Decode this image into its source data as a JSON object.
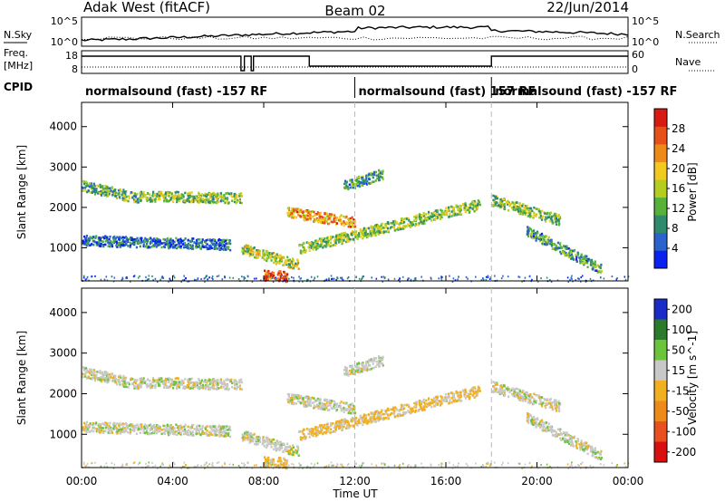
{
  "header": {
    "title": "Adak West (fitACF)",
    "beam": "Beam 02",
    "date": "22/Jun/2014"
  },
  "noise_panel": {
    "left_label": "N.Sky",
    "right_label": "N.Search",
    "left_ticks": [
      "10^5",
      "10^0"
    ],
    "right_ticks": [
      "10^5",
      "10^0"
    ]
  },
  "freq_panel": {
    "left_label_line1": "Freq.",
    "left_label_line2": "[MHz]",
    "left_ticks": [
      "18",
      "8"
    ],
    "right_label": "Nave",
    "right_ticks": [
      "60",
      "0"
    ]
  },
  "cpid": {
    "label": "CPID",
    "segments": [
      {
        "start_hour": 0,
        "end_hour": 12,
        "text": "normalsound (fast) -157 RF"
      },
      {
        "start_hour": 12,
        "end_hour": 18,
        "text": "normalsound (fast) 157 RF"
      },
      {
        "start_hour": 18,
        "end_hour": 24,
        "text": "normalsound (fast) -157 RF"
      }
    ]
  },
  "colors": {
    "power_scale": [
      "#0a22f0",
      "#2b63cc",
      "#2f8a6e",
      "#56b23a",
      "#b5cd1e",
      "#f2c91e",
      "#ee8a1a",
      "#e8501a",
      "#d81a12"
    ],
    "velocity_scale": [
      "#1a2cc8",
      "#2c7a2c",
      "#6cc43c",
      "#c8c8c8",
      "#f0b020",
      "#ee8a1a",
      "#e85020",
      "#d81010"
    ]
  },
  "chart_data": {
    "type": "heatmap",
    "x_axis": {
      "label": "Time UT",
      "ticks": [
        "00:00",
        "04:00",
        "08:00",
        "12:00",
        "16:00",
        "20:00",
        "00:00"
      ],
      "range_hours": [
        0,
        24
      ]
    },
    "panels": [
      {
        "name": "power",
        "y_axis": {
          "label": "Slant Range [km]",
          "ticks": [
            "1000",
            "2000",
            "3000",
            "4000"
          ],
          "range_km": [
            180,
            4600
          ]
        },
        "colorbar": {
          "label": "Power [dB]",
          "ticks": [
            "4",
            "8",
            "12",
            "16",
            "20",
            "24",
            "28"
          ],
          "range": [
            0,
            32
          ]
        },
        "echo_regions": [
          {
            "t": [
              0.0,
              2.5
            ],
            "r": [
              2550,
              2250
            ],
            "value": 12
          },
          {
            "t": [
              2.5,
              7.0
            ],
            "r": [
              2300,
              2250
            ],
            "value": 14
          },
          {
            "t": [
              0.0,
              6.5
            ],
            "r": [
              1200,
              1100
            ],
            "value": 6
          },
          {
            "t": [
              7.0,
              9.5
            ],
            "r": [
              1000,
              600
            ],
            "value": 16
          },
          {
            "t": [
              8.0,
              9.0
            ],
            "r": [
              350,
              300
            ],
            "value": 28
          },
          {
            "t": [
              9.0,
              12.0
            ],
            "r": [
              1900,
              1650
            ],
            "value": 22
          },
          {
            "t": [
              9.5,
              17.5
            ],
            "r": [
              1000,
              2100
            ],
            "value": 14
          },
          {
            "t": [
              11.5,
              13.2
            ],
            "r": [
              2550,
              2850
            ],
            "value": 10
          },
          {
            "t": [
              18.0,
              21.0
            ],
            "r": [
              2200,
              1700
            ],
            "value": 14
          },
          {
            "t": [
              19.5,
              22.8
            ],
            "r": [
              1450,
              500
            ],
            "value": 10
          }
        ]
      },
      {
        "name": "velocity",
        "y_axis": {
          "label": "Slant Range [km]",
          "ticks": [
            "1000",
            "2000",
            "3000",
            "4000"
          ],
          "range_km": [
            180,
            4600
          ]
        },
        "colorbar": {
          "label": "Velocity [m s^-1]",
          "ticks": [
            "200",
            "100",
            "50",
            "15",
            "-15",
            "-50",
            "-100",
            "-200"
          ]
        },
        "echo_regions": [
          {
            "t": [
              0.0,
              2.5
            ],
            "r": [
              2550,
              2250
            ],
            "value": 0
          },
          {
            "t": [
              2.5,
              7.0
            ],
            "r": [
              2300,
              2250
            ],
            "value": 0
          },
          {
            "t": [
              0.0,
              6.5
            ],
            "r": [
              1200,
              1100
            ],
            "value": 0
          },
          {
            "t": [
              7.0,
              9.5
            ],
            "r": [
              1000,
              600
            ],
            "value": 0
          },
          {
            "t": [
              8.0,
              9.0
            ],
            "r": [
              350,
              300
            ],
            "value": -30
          },
          {
            "t": [
              9.0,
              12.0
            ],
            "r": [
              1900,
              1650
            ],
            "value": 0
          },
          {
            "t": [
              9.5,
              17.5
            ],
            "r": [
              1000,
              2100
            ],
            "value": -30
          },
          {
            "t": [
              11.5,
              13.2
            ],
            "r": [
              2550,
              2850
            ],
            "value": 0
          },
          {
            "t": [
              18.0,
              21.0
            ],
            "r": [
              2200,
              1700
            ],
            "value": 0
          },
          {
            "t": [
              19.5,
              22.8
            ],
            "r": [
              1450,
              500
            ],
            "value": 0
          }
        ]
      }
    ]
  }
}
